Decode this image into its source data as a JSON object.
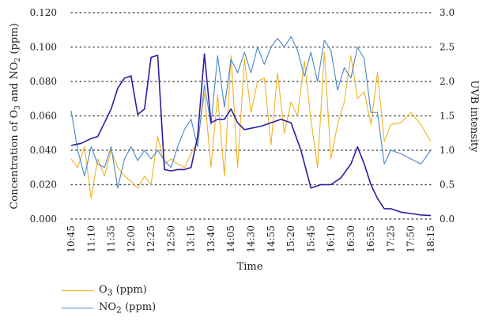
{
  "colors": {
    "o3": "#f0b323",
    "no2": "#4a86c8",
    "uvb": "#2a1fa0"
  },
  "chart_data": {
    "type": "line",
    "xlabel": "Time",
    "ylabel_left_parts": [
      "Concentration of O",
      "3",
      " and NO",
      "2",
      " (ppm)"
    ],
    "ylabel_right": "UVB intensity",
    "ylim_left": [
      0,
      0.12
    ],
    "ylim_right": [
      0,
      3.0
    ],
    "grid": "horizontal dotted",
    "legend": "bottom-left",
    "yticks_left": [
      "0.000",
      "0.020",
      "0.040",
      "0.060",
      "0.080",
      "0.100",
      "0.120"
    ],
    "yticks_right": [
      "0.0",
      "0.5",
      "1.0",
      "1.5",
      "2.0",
      "2.5",
      "3.0"
    ],
    "categories": [
      "10:45",
      "11:10",
      "11:35",
      "12:00",
      "12:25",
      "12:50",
      "13:15",
      "13:40",
      "14:05",
      "14:30",
      "14:55",
      "15:20",
      "15:45",
      "16:10",
      "16:30",
      "16:55",
      "17:25",
      "17:50",
      "18:15"
    ],
    "series": [
      {
        "key": "o3",
        "name_parts": [
          "O",
          "3",
          " (ppm)"
        ],
        "axis": "left",
        "x": [
          0,
          0.33,
          0.67,
          1,
          1.33,
          1.67,
          2,
          2.33,
          2.67,
          3,
          3.33,
          3.67,
          4,
          4.33,
          4.67,
          5,
          5.33,
          5.67,
          6,
          6.33,
          6.67,
          7,
          7.33,
          7.67,
          8,
          8.33,
          8.67,
          9,
          9.33,
          9.67,
          10,
          10.33,
          10.67,
          11,
          11.33,
          11.67,
          12,
          12.33,
          12.67,
          13,
          13.33,
          13.67,
          14,
          14.33,
          14.67,
          15,
          15.33,
          15.67,
          16,
          16.5,
          17,
          17.5,
          18
        ],
        "values": [
          0.035,
          0.03,
          0.042,
          0.012,
          0.035,
          0.025,
          0.04,
          0.03,
          0.025,
          0.022,
          0.018,
          0.025,
          0.02,
          0.048,
          0.032,
          0.035,
          0.032,
          0.03,
          0.038,
          0.045,
          0.073,
          0.03,
          0.072,
          0.025,
          0.095,
          0.03,
          0.093,
          0.062,
          0.08,
          0.082,
          0.043,
          0.085,
          0.05,
          0.068,
          0.06,
          0.092,
          0.058,
          0.03,
          0.097,
          0.035,
          0.055,
          0.068,
          0.095,
          0.07,
          0.074,
          0.055,
          0.085,
          0.045,
          0.055,
          0.056,
          0.062,
          0.055,
          0.045
        ]
      },
      {
        "key": "no2",
        "name_parts": [
          "NO",
          "2",
          " (ppm)"
        ],
        "axis": "left",
        "x": [
          0,
          0.33,
          0.67,
          1,
          1.33,
          1.67,
          2,
          2.33,
          2.67,
          3,
          3.33,
          3.67,
          4,
          4.33,
          4.67,
          5,
          5.33,
          5.67,
          6,
          6.33,
          6.67,
          7,
          7.33,
          7.67,
          8,
          8.33,
          8.67,
          9,
          9.33,
          9.67,
          10,
          10.33,
          10.67,
          11,
          11.33,
          11.67,
          12,
          12.33,
          12.67,
          13,
          13.33,
          13.67,
          14,
          14.33,
          14.67,
          15,
          15.33,
          15.67,
          16,
          16.5,
          17,
          17.5,
          18
        ],
        "values": [
          0.063,
          0.04,
          0.025,
          0.042,
          0.032,
          0.03,
          0.042,
          0.018,
          0.035,
          0.042,
          0.034,
          0.04,
          0.035,
          0.04,
          0.034,
          0.03,
          0.042,
          0.052,
          0.058,
          0.042,
          0.078,
          0.055,
          0.095,
          0.065,
          0.093,
          0.085,
          0.097,
          0.085,
          0.1,
          0.09,
          0.1,
          0.105,
          0.1,
          0.106,
          0.098,
          0.083,
          0.097,
          0.08,
          0.104,
          0.098,
          0.075,
          0.088,
          0.082,
          0.1,
          0.093,
          0.062,
          0.062,
          0.032,
          0.04,
          0.038,
          0.035,
          0.032,
          0.04
        ]
      },
      {
        "key": "uvb",
        "name_parts": [],
        "axis": "right",
        "x": [
          0,
          0.5,
          1,
          1.33,
          1.67,
          2,
          2.33,
          2.67,
          3,
          3.33,
          3.67,
          4,
          4.33,
          4.67,
          5,
          5.33,
          5.67,
          6,
          6.33,
          6.67,
          7,
          7.33,
          7.67,
          8,
          8.33,
          8.67,
          9,
          9.5,
          10,
          10.5,
          11,
          11.5,
          12,
          12.5,
          13,
          13.5,
          14,
          14.33,
          14.67,
          15,
          15.33,
          15.67,
          16,
          16.5,
          17,
          17.5,
          18
        ],
        "values": [
          1.07,
          1.1,
          1.17,
          1.2,
          1.4,
          1.6,
          1.9,
          2.05,
          2.08,
          1.52,
          1.6,
          2.35,
          2.38,
          0.72,
          0.7,
          0.72,
          0.72,
          0.75,
          1.2,
          2.4,
          1.4,
          1.45,
          1.45,
          1.6,
          1.4,
          1.3,
          1.32,
          1.35,
          1.4,
          1.45,
          1.4,
          1.0,
          0.45,
          0.5,
          0.5,
          0.6,
          0.8,
          1.05,
          0.8,
          0.5,
          0.3,
          0.15,
          0.15,
          0.1,
          0.08,
          0.06,
          0.05
        ]
      }
    ]
  }
}
